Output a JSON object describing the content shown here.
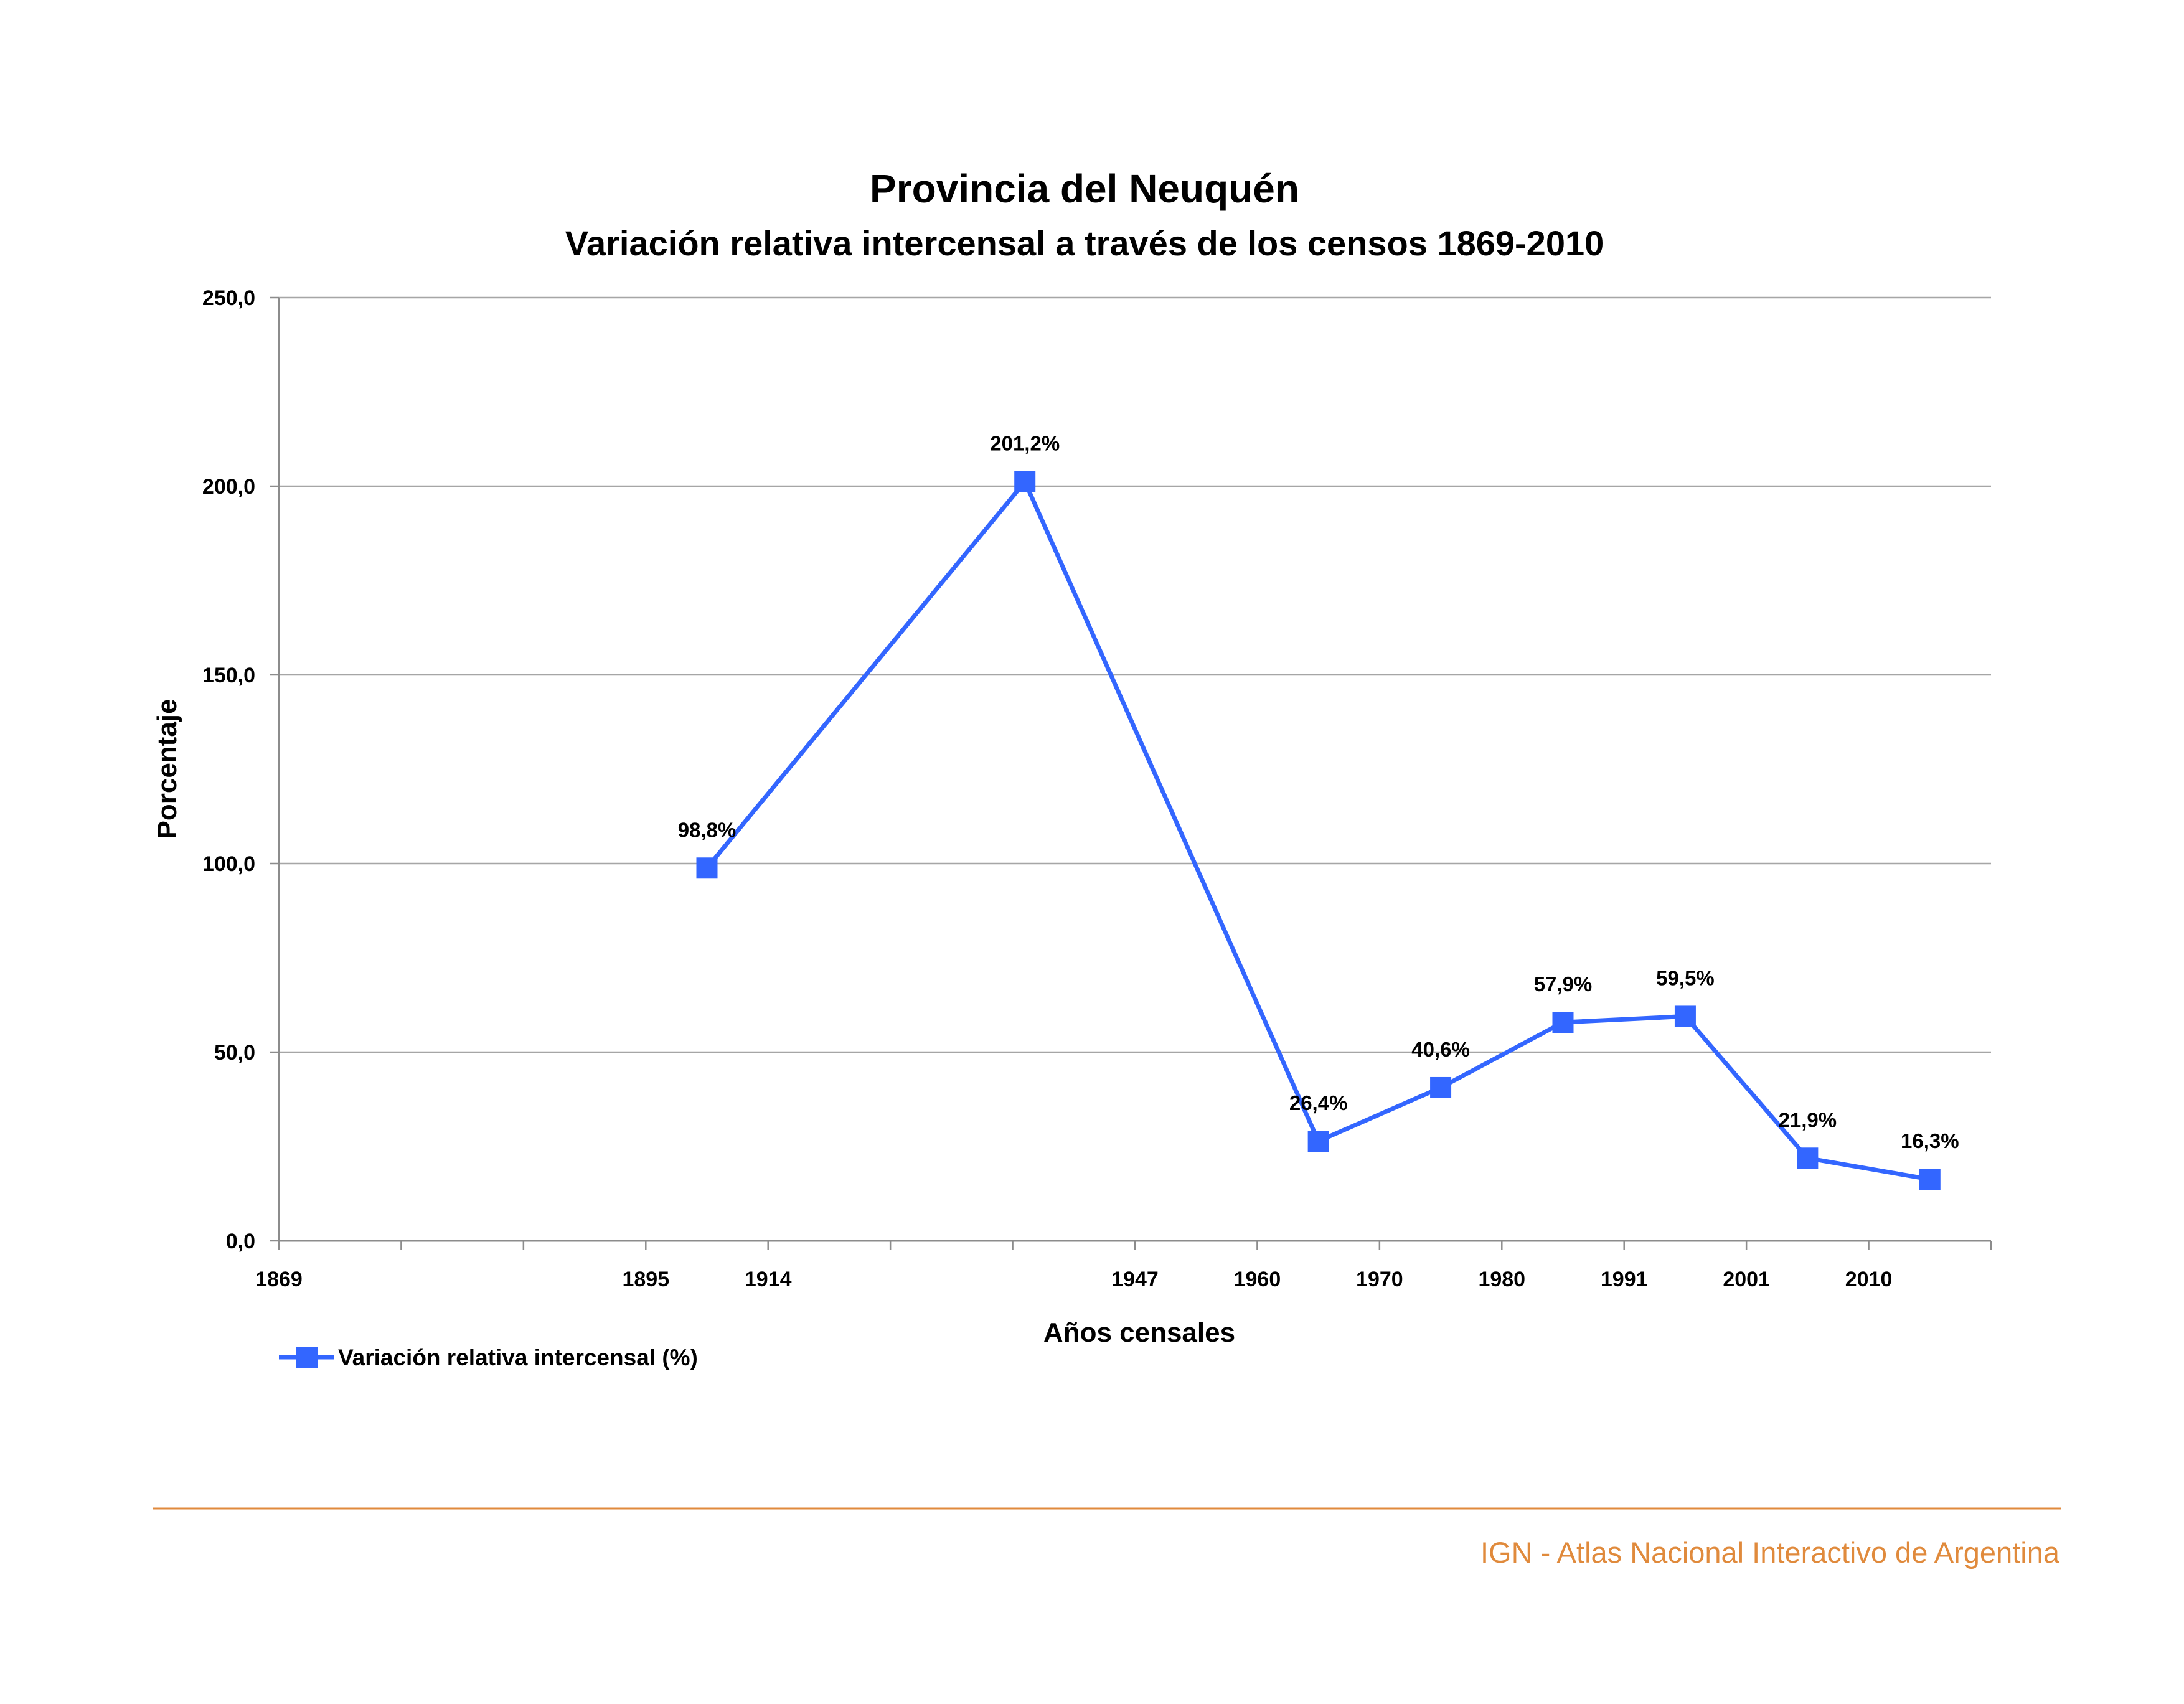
{
  "colors": {
    "series": "#3366ff",
    "grid": "#a6a6a6",
    "axis": "#8c8c8c",
    "footer": "#e08a3c"
  },
  "chart_data": {
    "type": "line",
    "title": "Provincia del Neuquén",
    "subtitle": "Variación relativa intercensal a través de los censos 1869-2010",
    "xlabel": "Años censales",
    "ylabel": "Porcentaje",
    "ylim": [
      0,
      250
    ],
    "yticks": [
      0,
      50,
      100,
      150,
      200,
      250
    ],
    "ytick_labels": [
      "0,0",
      "50,0",
      "100,0",
      "150,0",
      "200,0",
      "250,0"
    ],
    "xtick_labels": [
      "1869",
      "",
      "",
      "1895",
      "1914",
      "",
      "",
      "1947",
      "1960",
      "1970",
      "1980",
      "1991",
      "2001",
      "2010"
    ],
    "grid": "horizontal",
    "legend_position": "bottom-left",
    "series": [
      {
        "name": "Variación relativa intercensal (%)",
        "points": [
          {
            "slot": 3.5,
            "y": 98.8,
            "label": "98,8%"
          },
          {
            "slot": 6.1,
            "y": 201.2,
            "label": "201,2%"
          },
          {
            "slot": 8.5,
            "y": 26.4,
            "label": "26,4%"
          },
          {
            "slot": 9.5,
            "y": 40.6,
            "label": "40,6%"
          },
          {
            "slot": 10.5,
            "y": 57.9,
            "label": "57,9%"
          },
          {
            "slot": 11.5,
            "y": 59.5,
            "label": "59,5%"
          },
          {
            "slot": 12.5,
            "y": 21.9,
            "label": "21,9%"
          },
          {
            "slot": 13.5,
            "y": 16.3,
            "label": "16,3%"
          }
        ]
      }
    ]
  },
  "footer": {
    "text": "IGN - Atlas Nacional Interactivo de Argentina"
  }
}
